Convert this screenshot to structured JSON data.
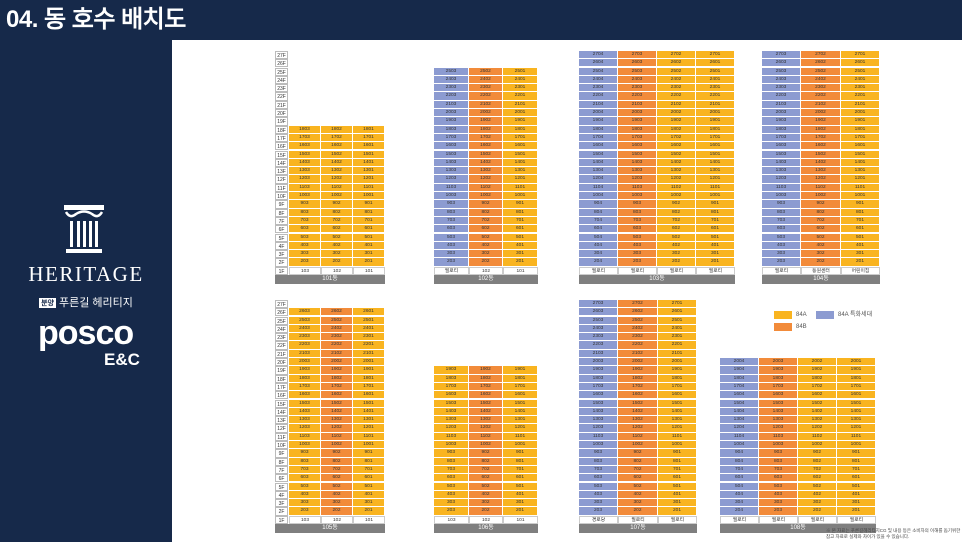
{
  "header": {
    "title": "04. 동 호수 배치도"
  },
  "sidebar": {
    "heritage": "HERITAGE",
    "sub_badge": "분양",
    "sub_label": "푸른길 헤리티지",
    "posco": "posco",
    "enc": "E&C"
  },
  "colors": {
    "header_bg": "#16294a",
    "type_84A": "#f9b420",
    "type_84B": "#f28b3a",
    "type_84A_special": "#8c9bd1",
    "building_label_bg": "#7f7f7f"
  },
  "floor_labels": [
    "27F",
    "26F",
    "25F",
    "24F",
    "23F",
    "22F",
    "21F",
    "20F",
    "19F",
    "18F",
    "17F",
    "16F",
    "15F",
    "14F",
    "13F",
    "12F",
    "11F",
    "10F",
    "9F",
    "8F",
    "7F",
    "6F",
    "5F",
    "4F",
    "3F",
    "2F",
    "1F"
  ],
  "legend": {
    "a": "84A",
    "b": "84B",
    "special": "84A 특화세대"
  },
  "note": "※ 본 자료는 푸른길헤리티지CG 및 내용 등은 소비자의 이해를 돕기위한 참고 자료로 실제와 차이가 있을 수 있습니다.",
  "buildings": [
    {
      "name": "101동",
      "top_floor": 18,
      "units": [
        "3",
        "2",
        "1"
      ],
      "colors": [
        "a",
        "a",
        "a"
      ],
      "ground": [
        "103",
        "102",
        "101"
      ]
    },
    {
      "name": "102동",
      "top_floor": 25,
      "units": [
        "3",
        "2",
        "1"
      ],
      "colors": [
        "t",
        "b",
        "a"
      ],
      "ground": [
        "필로티",
        "102",
        "101"
      ]
    },
    {
      "name": "103동",
      "top_floor": 27,
      "units": [
        "4",
        "3",
        "2",
        "1"
      ],
      "colors": [
        "t",
        "b",
        "a",
        "a"
      ],
      "ground": [
        "필로티",
        "필로티",
        "필로티",
        "필로티"
      ]
    },
    {
      "name": "104동",
      "top_floor": 27,
      "units": [
        "3",
        "2",
        "1"
      ],
      "colors": [
        "t",
        "b",
        "a"
      ],
      "ground": [
        "필로티",
        "동원센터",
        "어린이집"
      ]
    },
    {
      "name": "105동",
      "top_floor": 26,
      "units": [
        "3",
        "2",
        "1"
      ],
      "colors": [
        "a",
        "b",
        "a"
      ],
      "ground": [
        "103",
        "102",
        "101"
      ]
    },
    {
      "name": "106동",
      "top_floor": 19,
      "units": [
        "3",
        "2",
        "1"
      ],
      "colors": [
        "a",
        "b",
        "a"
      ],
      "ground": [
        "103",
        "102",
        "101"
      ]
    },
    {
      "name": "107동",
      "top_floor": 27,
      "units": [
        "3",
        "2",
        "1"
      ],
      "colors": [
        "t",
        "b",
        "a"
      ],
      "ground": [
        "경로당",
        "필로티",
        "필로티"
      ]
    },
    {
      "name": "108동",
      "top_floor": 20,
      "units": [
        "4",
        "3",
        "2",
        "1"
      ],
      "colors": [
        "t",
        "b",
        "a",
        "a"
      ],
      "ground": [
        "필로티",
        "필로티",
        "필로티",
        "필로티"
      ]
    }
  ]
}
